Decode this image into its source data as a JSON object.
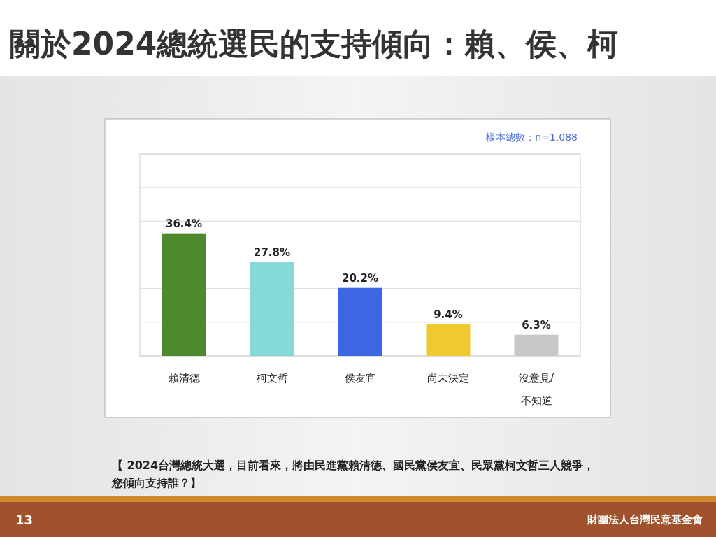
{
  "chart_data": {
    "type": "bar",
    "title": "關於2024總統選民的支持傾向：賴、侯、柯",
    "categories": [
      "賴清德",
      "柯文哲",
      "侯友宜",
      "尚未決定",
      "沒意見/不知道"
    ],
    "values": [
      36.4,
      27.8,
      20.2,
      9.4,
      6.3
    ],
    "colors": [
      "#4e8a2b",
      "#86d9d9",
      "#3b67e3",
      "#f0c930",
      "#c8c8c8"
    ],
    "value_labels": [
      "36.4%",
      "27.8%",
      "20.2%",
      "9.4%",
      "6.3%"
    ],
    "ylim": [
      0,
      60
    ],
    "yticks": [
      {
        "value": 0,
        "label": null
      },
      {
        "value": 10,
        "label": null
      },
      {
        "value": 20,
        "label": null
      },
      {
        "value": 30,
        "label": null
      },
      {
        "value": 40,
        "label": null
      },
      {
        "value": 50,
        "label": null
      },
      {
        "value": 60,
        "label": null
      }
    ],
    "grid": "y",
    "tick_labels": "x",
    "annotations": [
      "樣本總數：n=1,088",
      "【 2024台灣總統大選，目前看來，將由民進黨賴清德、國民黨侯友宜、民眾黨柯文哲三人競爭，您傾向支持誰？】",
      "13",
      "財團法人台灣民意基金會"
    ]
  }
}
